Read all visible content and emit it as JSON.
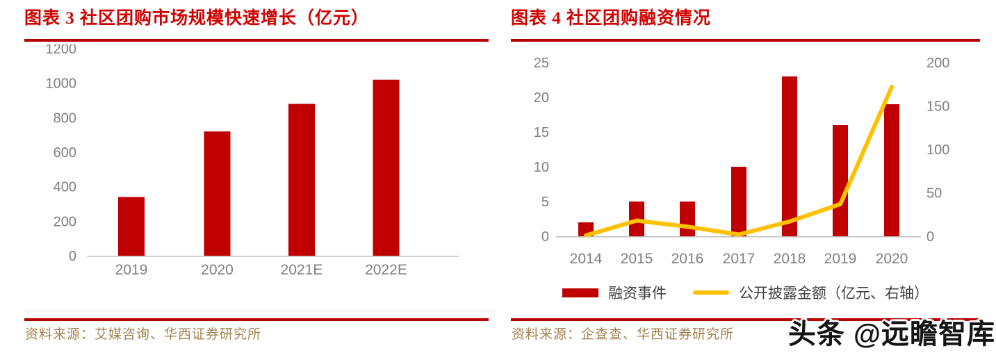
{
  "figures": [
    {
      "label": "图表 3",
      "title": "图表 3  社区团购市场规模快速增长（亿元）",
      "source": "资料来源：艾媒咨询、华西证券研究所"
    },
    {
      "label": "图表 4",
      "title": "图表 4  社区团购融资情况",
      "source": "资料来源：企查查、华西证券研究所"
    }
  ],
  "watermark": "头条 @远瞻智库",
  "colors": {
    "bar_red": "#c00000",
    "line_yellow": "#ffc000",
    "title_red": "#d00000",
    "rule_red": "#b70000",
    "axis_gray": "#7f7f7f",
    "baseline_gray": "#bfbfbf",
    "source_tan": "#a3824e",
    "legend_text": "#404040"
  },
  "chart_data": [
    {
      "type": "bar",
      "title": "社区团购市场规模快速增长（亿元）",
      "categories": [
        "2019",
        "2020",
        "2021E",
        "2022E"
      ],
      "values": [
        340,
        720,
        880,
        1020
      ],
      "ylim": [
        0,
        1200
      ],
      "yticks": [
        0,
        200,
        400,
        600,
        800,
        1000,
        1200
      ],
      "grid": false,
      "legend_position": "none"
    },
    {
      "type": "bar+line",
      "title": "社区团购融资情况",
      "categories": [
        "2014",
        "2015",
        "2016",
        "2017",
        "2018",
        "2019",
        "2020"
      ],
      "series": [
        {
          "name": "融资事件",
          "type": "bar",
          "axis": "left",
          "color": "#c00000",
          "values": [
            2,
            5,
            5,
            10,
            23,
            16,
            19
          ]
        },
        {
          "name": "公开披露金额（亿元、右轴）",
          "type": "line",
          "axis": "right",
          "color": "#ffc000",
          "values": [
            1,
            18,
            11,
            2,
            17,
            37,
            172
          ]
        }
      ],
      "left_ylim": [
        0,
        25
      ],
      "left_yticks": [
        0,
        5,
        10,
        15,
        20,
        25
      ],
      "right_ylim": [
        0,
        200
      ],
      "right_yticks": [
        0,
        50,
        100,
        150,
        200
      ],
      "grid": false,
      "legend_position": "bottom"
    }
  ]
}
